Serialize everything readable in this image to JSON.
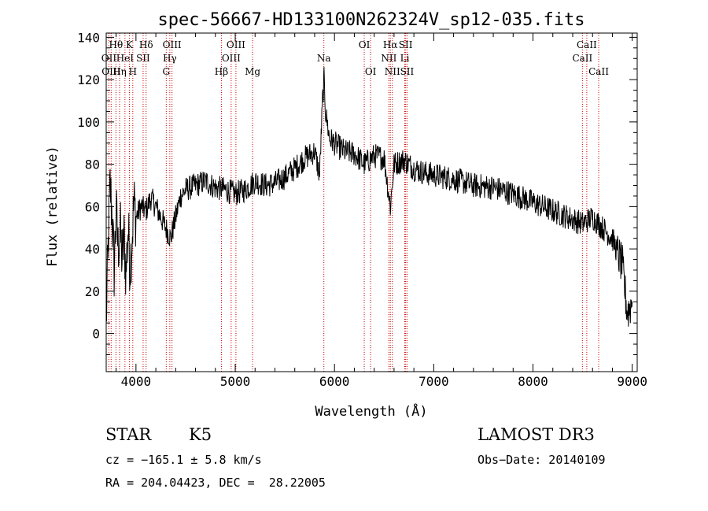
{
  "chart_data": {
    "type": "line",
    "title": "spec-56667-HD133100N262324V_sp12-035.fits",
    "xlabel": "Wavelength (Å)",
    "ylabel": "Flux (relative)",
    "xlim": [
      3700,
      9050
    ],
    "ylim": [
      -18,
      142
    ],
    "xticks": [
      4000,
      5000,
      6000,
      7000,
      8000,
      9000
    ],
    "yticks": [
      0,
      20,
      40,
      60,
      80,
      100,
      120,
      140
    ],
    "line_color": "#000000",
    "marker_color": "#cc0000",
    "spectrum_anchors": [
      [
        3700,
        5
      ],
      [
        3720,
        40
      ],
      [
        3740,
        70
      ],
      [
        3760,
        55
      ],
      [
        3780,
        30
      ],
      [
        3800,
        58
      ],
      [
        3820,
        40
      ],
      [
        3840,
        50
      ],
      [
        3860,
        35
      ],
      [
        3880,
        45
      ],
      [
        3900,
        28
      ],
      [
        3920,
        50
      ],
      [
        3940,
        32
      ],
      [
        3960,
        45
      ],
      [
        3980,
        62
      ],
      [
        4000,
        55
      ],
      [
        4050,
        60
      ],
      [
        4100,
        58
      ],
      [
        4150,
        64
      ],
      [
        4200,
        60
      ],
      [
        4250,
        55
      ],
      [
        4300,
        50
      ],
      [
        4350,
        45
      ],
      [
        4400,
        55
      ],
      [
        4450,
        65
      ],
      [
        4500,
        68
      ],
      [
        4600,
        70
      ],
      [
        4700,
        72
      ],
      [
        4800,
        69
      ],
      [
        4900,
        68
      ],
      [
        5000,
        66
      ],
      [
        5100,
        68
      ],
      [
        5200,
        72
      ],
      [
        5300,
        70
      ],
      [
        5400,
        71
      ],
      [
        5500,
        74
      ],
      [
        5600,
        78
      ],
      [
        5700,
        83
      ],
      [
        5800,
        86
      ],
      [
        5850,
        75
      ],
      [
        5880,
        110
      ],
      [
        5895,
        120
      ],
      [
        5910,
        105
      ],
      [
        5950,
        92
      ],
      [
        6000,
        90
      ],
      [
        6100,
        86
      ],
      [
        6200,
        85
      ],
      [
        6300,
        80
      ],
      [
        6400,
        84
      ],
      [
        6500,
        83
      ],
      [
        6563,
        60
      ],
      [
        6600,
        80
      ],
      [
        6700,
        82
      ],
      [
        6800,
        78
      ],
      [
        6900,
        76
      ],
      [
        7000,
        75
      ],
      [
        7200,
        73
      ],
      [
        7400,
        70
      ],
      [
        7600,
        69
      ],
      [
        7800,
        66
      ],
      [
        8000,
        62
      ],
      [
        8200,
        58
      ],
      [
        8400,
        54
      ],
      [
        8500,
        52
      ],
      [
        8600,
        55
      ],
      [
        8700,
        50
      ],
      [
        8800,
        45
      ],
      [
        8900,
        32
      ],
      [
        8950,
        10
      ],
      [
        9000,
        15
      ]
    ],
    "lines": [
      {
        "label": "Hθ",
        "x": 3798,
        "row": 0
      },
      {
        "label": "K",
        "x": 3934,
        "row": 0
      },
      {
        "label": "Hδ",
        "x": 4102,
        "row": 0
      },
      {
        "label": "OIII",
        "x": 4363,
        "row": 0
      },
      {
        "label": "OIII",
        "x": 5007,
        "row": 0
      },
      {
        "label": "OI",
        "x": 6300,
        "row": 0
      },
      {
        "label": "Hα",
        "x": 6563,
        "row": 0
      },
      {
        "label": "SII",
        "x": 6717,
        "row": 0
      },
      {
        "label": "CaII",
        "x": 8542,
        "row": 0
      },
      {
        "label": "OII",
        "x": 3727,
        "row": 1
      },
      {
        "label": "HeI",
        "x": 3889,
        "row": 1
      },
      {
        "label": "SII",
        "x": 4072,
        "row": 1
      },
      {
        "label": "Hγ",
        "x": 4341,
        "row": 1
      },
      {
        "label": "OIII",
        "x": 4959,
        "row": 1
      },
      {
        "label": "Na",
        "x": 5893,
        "row": 1
      },
      {
        "label": "NII",
        "x": 6548,
        "row": 1
      },
      {
        "label": "Li",
        "x": 6708,
        "row": 1
      },
      {
        "label": "CaII",
        "x": 8498,
        "row": 1
      },
      {
        "label": "OIII",
        "x": 3750,
        "row": 2
      },
      {
        "label": "Hη",
        "x": 3835,
        "row": 2
      },
      {
        "label": "H",
        "x": 3968,
        "row": 2
      },
      {
        "label": "G",
        "x": 4305,
        "row": 2
      },
      {
        "label": "Hβ",
        "x": 4861,
        "row": 2
      },
      {
        "label": "Mg",
        "x": 5175,
        "row": 2
      },
      {
        "label": "OI",
        "x": 6364,
        "row": 2
      },
      {
        "label": "NII",
        "x": 6583,
        "row": 2
      },
      {
        "label": "SII",
        "x": 6731,
        "row": 2
      },
      {
        "label": "CaII",
        "x": 8662,
        "row": 2
      }
    ]
  },
  "info": {
    "object_class": "STAR",
    "subclass": "K5",
    "survey": "LAMOST DR3",
    "cz": "cz = −165.1 ± 5.8 km/s",
    "obs_date": "Obs−Date: 20140109",
    "coords": "RA = 204.04423, DEC =  28.22005"
  }
}
